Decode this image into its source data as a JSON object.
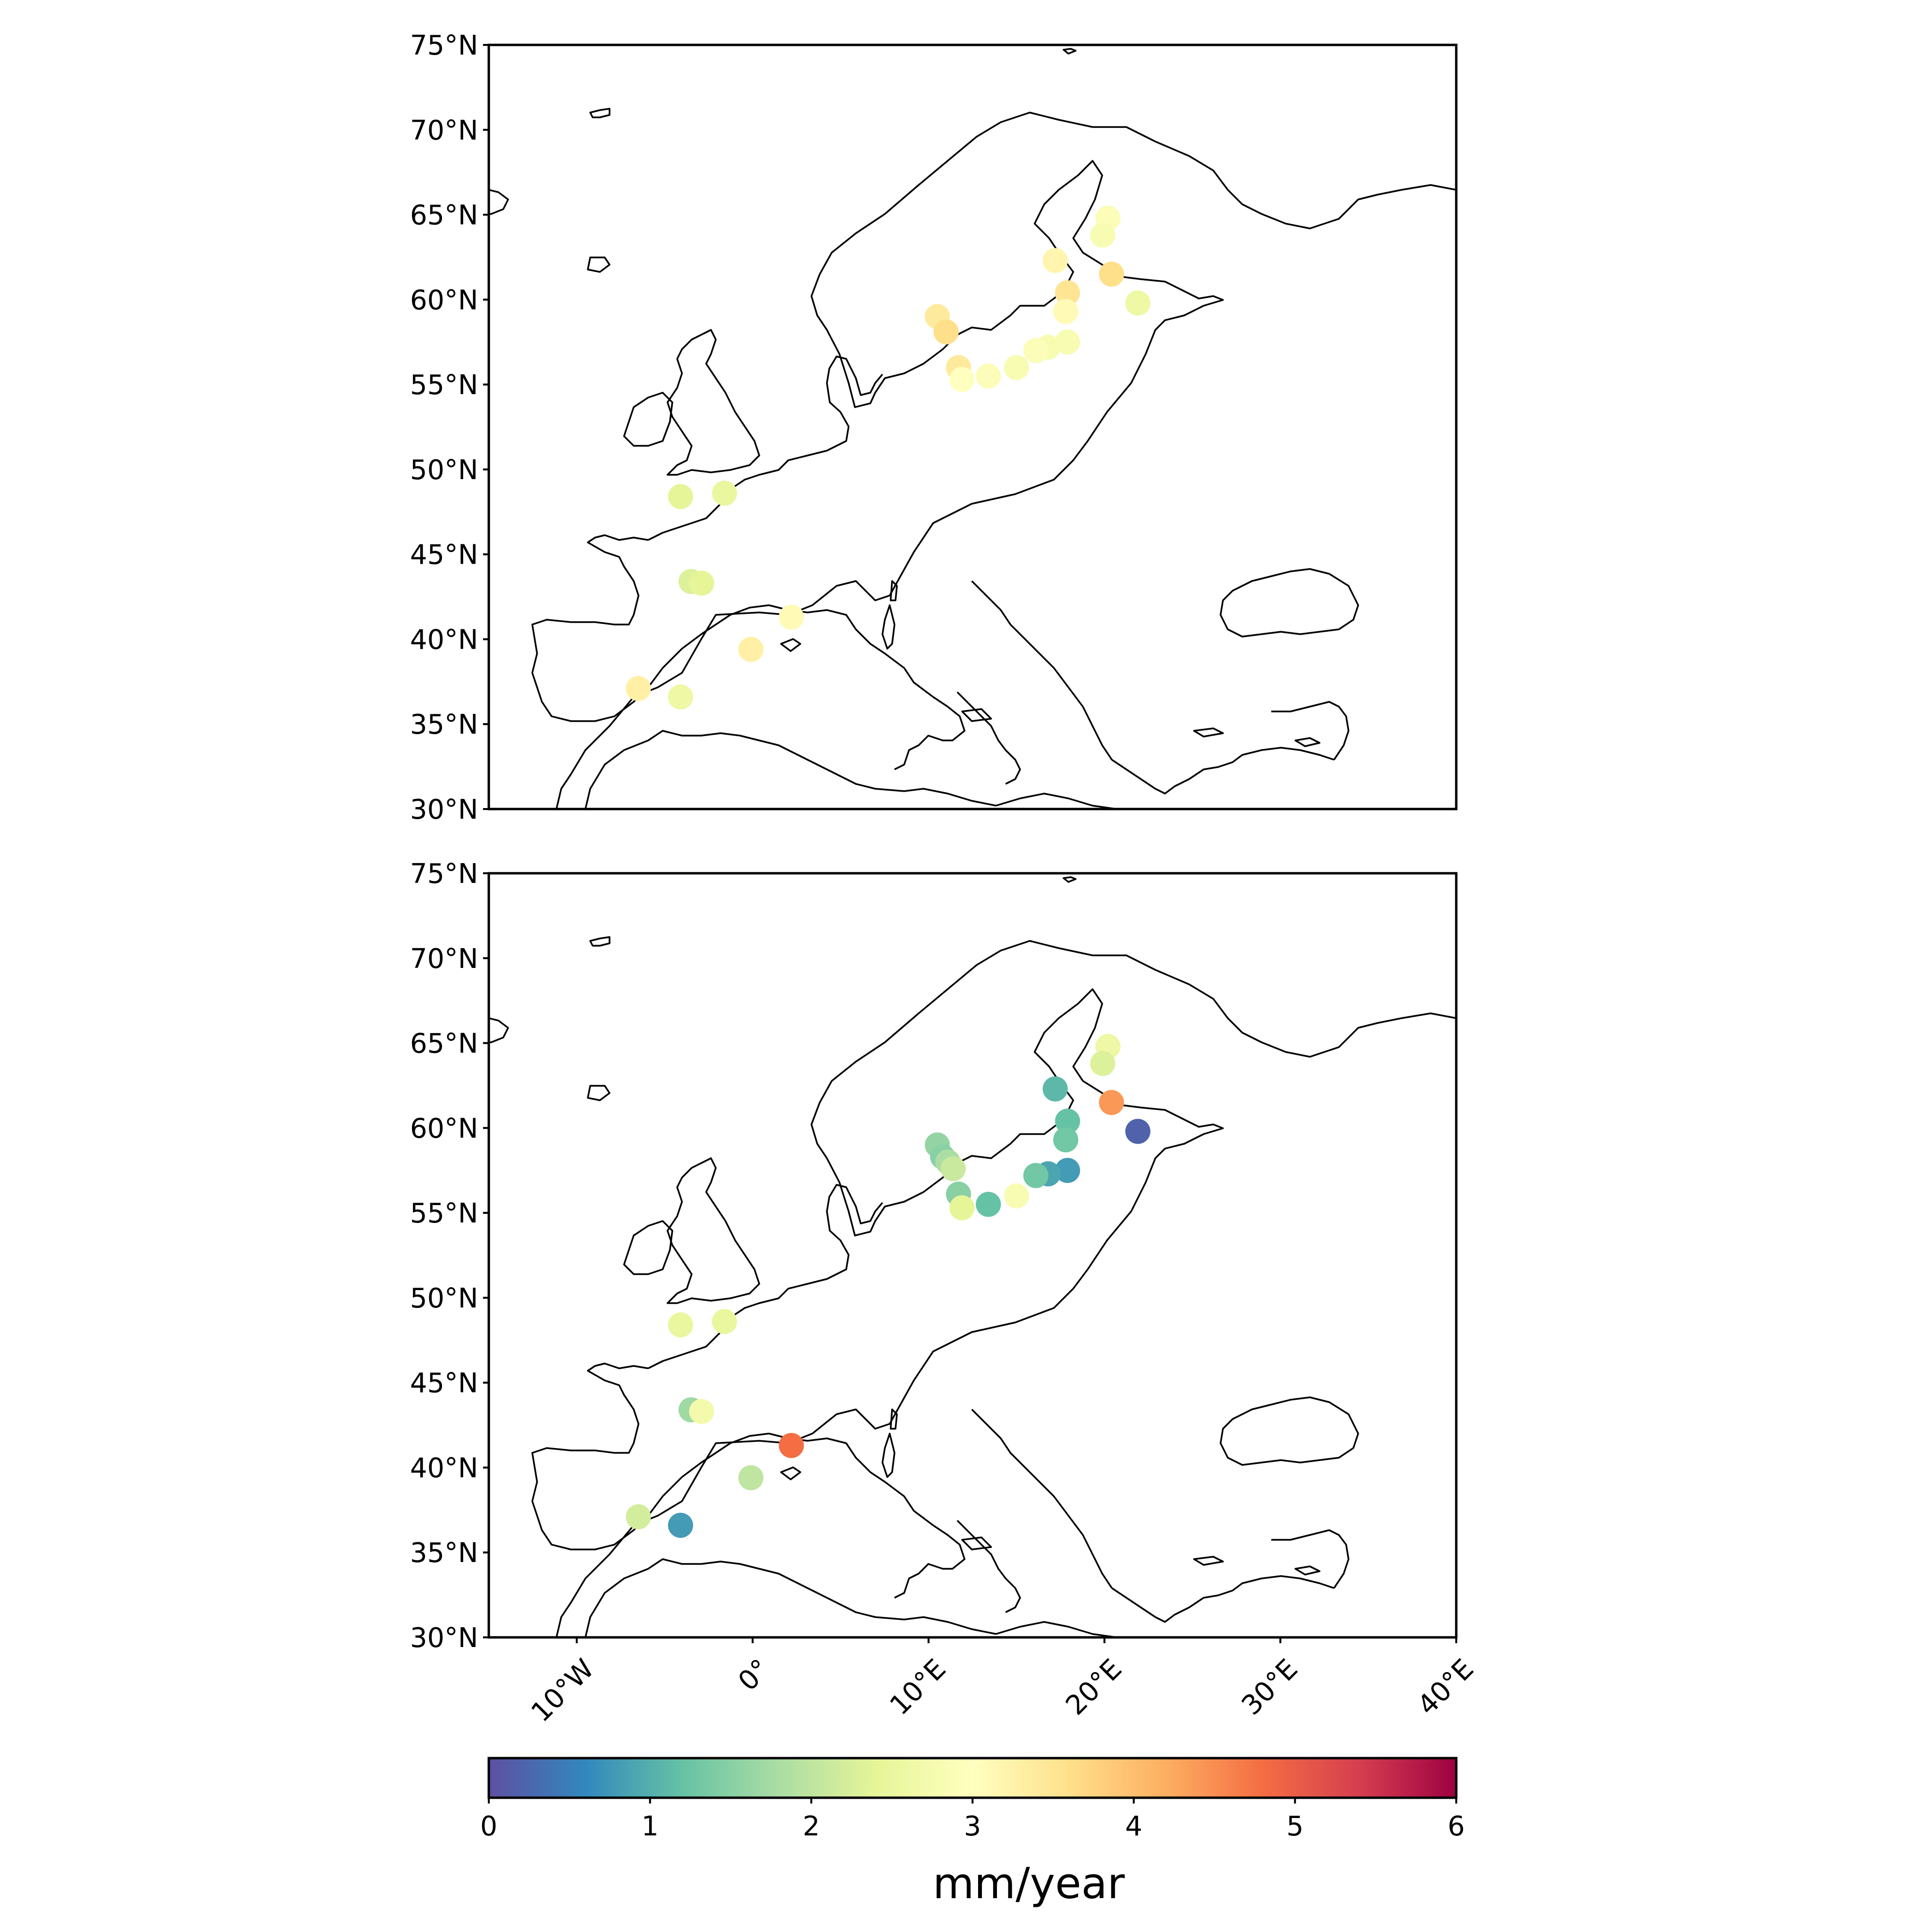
{
  "chart_data": [
    {
      "type": "scatter",
      "panel": "top",
      "x_extent_deg": [
        -15,
        40
      ],
      "ylim": [
        30,
        75
      ],
      "y_ticks": [
        "75°N",
        "70°N",
        "65°N",
        "60°N",
        "55°N",
        "50°N",
        "45°N",
        "40°N",
        "35°N",
        "30°N"
      ],
      "points": [
        {
          "lon": 20.2,
          "lat": 64.8,
          "v": 2.9
        },
        {
          "lon": 19.9,
          "lat": 63.8,
          "v": 2.8
        },
        {
          "lon": 17.2,
          "lat": 62.3,
          "v": 3.2
        },
        {
          "lon": 20.4,
          "lat": 61.5,
          "v": 3.6
        },
        {
          "lon": 17.9,
          "lat": 60.4,
          "v": 3.5
        },
        {
          "lon": 21.9,
          "lat": 59.8,
          "v": 2.6
        },
        {
          "lon": 17.8,
          "lat": 59.3,
          "v": 3.1
        },
        {
          "lon": 10.5,
          "lat": 59.0,
          "v": 3.4
        },
        {
          "lon": 11.0,
          "lat": 58.1,
          "v": 3.6
        },
        {
          "lon": 17.9,
          "lat": 57.5,
          "v": 2.8
        },
        {
          "lon": 16.8,
          "lat": 57.2,
          "v": 2.8
        },
        {
          "lon": 16.1,
          "lat": 57.0,
          "v": 2.9
        },
        {
          "lon": 11.7,
          "lat": 56.0,
          "v": 3.4
        },
        {
          "lon": 15.0,
          "lat": 56.0,
          "v": 2.8
        },
        {
          "lon": 13.4,
          "lat": 55.5,
          "v": 2.9
        },
        {
          "lon": 11.9,
          "lat": 55.3,
          "v": 3.0
        },
        {
          "lon": -4.1,
          "lat": 48.4,
          "v": 2.4
        },
        {
          "lon": -1.6,
          "lat": 48.6,
          "v": 2.5
        },
        {
          "lon": -3.5,
          "lat": 43.4,
          "v": 2.3
        },
        {
          "lon": -2.9,
          "lat": 43.3,
          "v": 2.4
        },
        {
          "lon": 2.2,
          "lat": 41.3,
          "v": 3.1
        },
        {
          "lon": -0.1,
          "lat": 39.4,
          "v": 3.3
        },
        {
          "lon": -6.5,
          "lat": 37.1,
          "v": 3.3
        },
        {
          "lon": -4.1,
          "lat": 36.6,
          "v": 2.6
        }
      ]
    },
    {
      "type": "scatter",
      "panel": "bottom",
      "x_extent_deg": [
        -15,
        40
      ],
      "ylim": [
        30,
        75
      ],
      "y_ticks": [
        "75°N",
        "70°N",
        "65°N",
        "60°N",
        "55°N",
        "50°N",
        "45°N",
        "40°N",
        "35°N",
        "30°N"
      ],
      "x_ticks": [
        "10°W",
        "0°",
        "10°E",
        "20°E",
        "30°E",
        "40°E"
      ],
      "points": [
        {
          "lon": 20.2,
          "lat": 64.8,
          "v": 2.6
        },
        {
          "lon": 19.9,
          "lat": 63.8,
          "v": 2.3
        },
        {
          "lon": 17.2,
          "lat": 62.3,
          "v": 1.1
        },
        {
          "lon": 20.4,
          "lat": 61.5,
          "v": 4.4
        },
        {
          "lon": 17.9,
          "lat": 60.4,
          "v": 1.2
        },
        {
          "lon": 21.9,
          "lat": 59.8,
          "v": 0.2
        },
        {
          "lon": 17.8,
          "lat": 59.3,
          "v": 1.3
        },
        {
          "lon": 10.5,
          "lat": 59.0,
          "v": 1.6
        },
        {
          "lon": 10.8,
          "lat": 58.3,
          "v": 1.5
        },
        {
          "lon": 11.1,
          "lat": 58.0,
          "v": 1.8
        },
        {
          "lon": 11.4,
          "lat": 57.6,
          "v": 2.1
        },
        {
          "lon": 17.9,
          "lat": 57.5,
          "v": 0.8
        },
        {
          "lon": 16.8,
          "lat": 57.3,
          "v": 0.9
        },
        {
          "lon": 16.1,
          "lat": 57.2,
          "v": 1.3
        },
        {
          "lon": 11.7,
          "lat": 56.1,
          "v": 1.5
        },
        {
          "lon": 15.0,
          "lat": 56.0,
          "v": 2.8
        },
        {
          "lon": 13.4,
          "lat": 55.5,
          "v": 1.2
        },
        {
          "lon": 11.9,
          "lat": 55.3,
          "v": 2.4
        },
        {
          "lon": -4.1,
          "lat": 48.4,
          "v": 2.5
        },
        {
          "lon": -1.6,
          "lat": 48.6,
          "v": 2.5
        },
        {
          "lon": -3.5,
          "lat": 43.4,
          "v": 1.7
        },
        {
          "lon": -2.9,
          "lat": 43.3,
          "v": 2.7
        },
        {
          "lon": 2.2,
          "lat": 41.3,
          "v": 4.8
        },
        {
          "lon": -0.1,
          "lat": 39.4,
          "v": 2.0
        },
        {
          "lon": -6.5,
          "lat": 37.1,
          "v": 2.2
        },
        {
          "lon": -4.1,
          "lat": 36.6,
          "v": 0.8
        }
      ]
    }
  ],
  "colorbar": {
    "label": "mm/year",
    "range": [
      0,
      6
    ],
    "ticks": [
      "0",
      "1",
      "2",
      "3",
      "4",
      "5",
      "6"
    ],
    "colormap": "Spectral_r",
    "stops": [
      "#5e4fa2",
      "#3288bd",
      "#66c2a5",
      "#abdda4",
      "#e6f598",
      "#ffffbf",
      "#fee08b",
      "#fdae61",
      "#f46d43",
      "#d53e4f",
      "#9e0142"
    ]
  }
}
